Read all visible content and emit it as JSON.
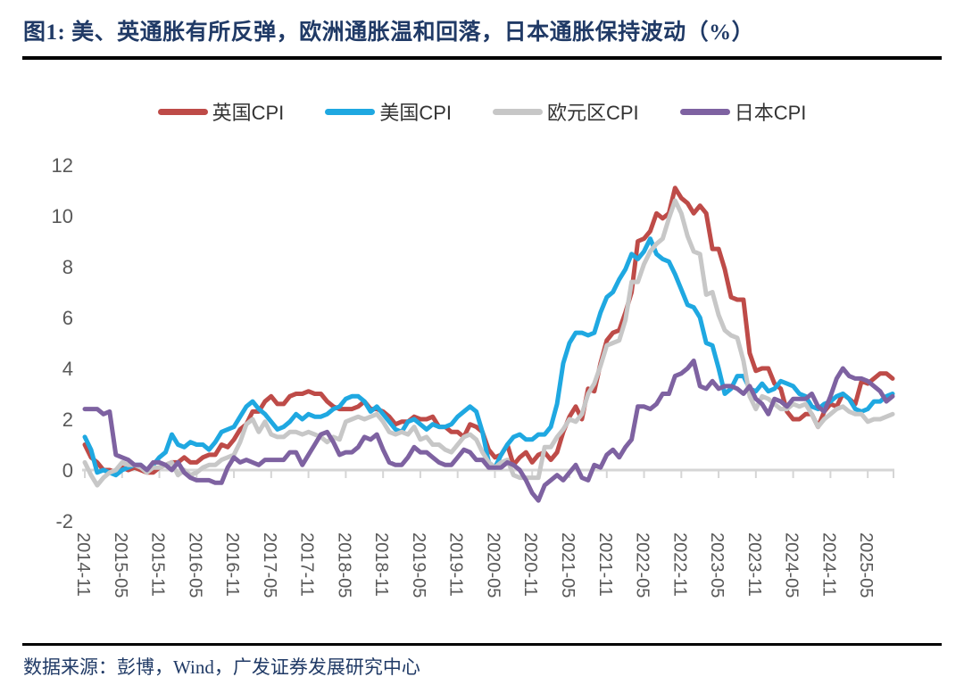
{
  "title": "图1:  美、英通胀有所反弹，欧洲通胀温和回落，日本通胀保持波动（%）",
  "footer": {
    "source_label": "数据来源：彭博，Wind，广发证券发展研究中心"
  },
  "colors": {
    "title_navy": "#203A66",
    "axis_line": "#D5D5D5",
    "axis_text": "#595959",
    "divider_black": "#000000"
  },
  "chart_data": {
    "type": "line",
    "title": "",
    "xlabel": "",
    "ylabel": "",
    "unit": "%",
    "x_frequency": "monthly",
    "x_start": "2014-11",
    "x_end": "2025-09",
    "ylim": [
      -2,
      12
    ],
    "y_ticks": [
      12,
      10,
      8,
      6,
      4,
      2,
      0,
      -2
    ],
    "grid": false,
    "legend_position": "top-center",
    "x_tick_labels": [
      "2014-11",
      "2015-05",
      "2015-11",
      "2016-05",
      "2016-11",
      "2017-05",
      "2017-11",
      "2018-05",
      "2018-11",
      "2019-05",
      "2019-11",
      "2020-05",
      "2020-11",
      "2021-05",
      "2021-11",
      "2022-05",
      "2022-11",
      "2023-05",
      "2023-11",
      "2024-05",
      "2024-11",
      "2025-05"
    ],
    "series": [
      {
        "name": "英国CPI",
        "slug": "uk-cpi",
        "color": "#BE4B48",
        "values": [
          1.0,
          0.5,
          0.3,
          0.0,
          0.0,
          -0.1,
          0.1,
          0.0,
          0.1,
          0.0,
          -0.1,
          -0.1,
          0.1,
          0.2,
          0.3,
          0.3,
          0.5,
          0.3,
          0.3,
          0.5,
          0.6,
          0.6,
          1.0,
          0.9,
          1.2,
          1.6,
          1.8,
          2.3,
          2.3,
          2.7,
          2.9,
          2.6,
          2.6,
          2.9,
          3.0,
          3.0,
          3.1,
          3.0,
          3.0,
          2.7,
          2.5,
          2.4,
          2.4,
          2.4,
          2.5,
          2.7,
          2.4,
          2.4,
          2.3,
          2.1,
          1.8,
          1.9,
          1.9,
          2.1,
          2.0,
          2.0,
          2.1,
          1.7,
          1.7,
          1.5,
          1.5,
          1.3,
          1.8,
          1.7,
          1.5,
          0.8,
          0.5,
          0.6,
          1.0,
          0.2,
          0.5,
          0.7,
          0.3,
          0.6,
          0.7,
          0.4,
          0.7,
          1.5,
          2.1,
          2.5,
          2.0,
          3.2,
          3.1,
          4.2,
          5.1,
          5.4,
          5.5,
          6.2,
          7.0,
          9.0,
          9.1,
          9.4,
          10.1,
          9.9,
          10.1,
          11.1,
          10.7,
          10.5,
          10.1,
          10.4,
          10.1,
          8.7,
          8.7,
          7.9,
          6.8,
          6.7,
          6.7,
          4.6,
          3.9,
          4.0,
          4.0,
          3.4,
          3.2,
          2.3,
          2.0,
          2.0,
          2.2,
          2.2,
          1.7,
          2.3,
          2.6,
          2.5,
          3.0,
          2.8,
          2.6,
          3.5,
          3.4,
          3.6,
          3.8,
          3.8,
          3.6
        ]
      },
      {
        "name": "美国CPI",
        "slug": "us-cpi",
        "color": "#1FA8E1",
        "values": [
          1.3,
          0.8,
          -0.1,
          0.0,
          -0.1,
          -0.2,
          0.0,
          0.1,
          0.2,
          0.2,
          0.0,
          0.2,
          0.5,
          0.7,
          1.4,
          1.0,
          0.9,
          1.1,
          1.0,
          1.0,
          0.8,
          1.1,
          1.5,
          1.6,
          1.7,
          2.1,
          2.5,
          2.7,
          2.4,
          2.2,
          1.9,
          1.6,
          1.7,
          1.9,
          2.2,
          2.0,
          2.2,
          2.1,
          2.1,
          2.2,
          2.4,
          2.5,
          2.8,
          2.9,
          2.9,
          2.7,
          2.3,
          2.5,
          2.2,
          1.9,
          1.6,
          1.5,
          1.9,
          2.0,
          1.8,
          1.6,
          1.8,
          1.7,
          1.7,
          1.8,
          2.1,
          2.3,
          2.5,
          2.3,
          1.5,
          0.3,
          0.1,
          0.6,
          1.0,
          1.3,
          1.4,
          1.2,
          1.2,
          1.4,
          1.4,
          1.7,
          2.6,
          4.2,
          5.0,
          5.4,
          5.4,
          5.3,
          5.4,
          6.2,
          6.8,
          7.0,
          7.5,
          7.9,
          8.5,
          8.3,
          8.6,
          9.1,
          8.5,
          8.3,
          8.2,
          7.7,
          7.1,
          6.5,
          6.4,
          6.0,
          5.0,
          4.9,
          4.0,
          3.0,
          3.2,
          3.7,
          3.7,
          3.2,
          3.1,
          3.4,
          3.1,
          3.2,
          3.5,
          3.4,
          3.3,
          3.0,
          2.9,
          2.5,
          2.4,
          2.6,
          2.7,
          2.9,
          3.0,
          2.8,
          2.4,
          2.3,
          2.4,
          2.7,
          2.7,
          2.9,
          3.0
        ]
      },
      {
        "name": "欧元区CPI",
        "slug": "eurozone-cpi",
        "color": "#C7C7C7",
        "values": [
          0.3,
          -0.2,
          -0.6,
          -0.3,
          -0.1,
          0.0,
          0.3,
          0.2,
          0.2,
          0.1,
          -0.1,
          0.1,
          0.1,
          0.2,
          0.3,
          -0.2,
          0.0,
          -0.2,
          -0.1,
          0.1,
          0.2,
          0.2,
          0.4,
          0.5,
          0.6,
          1.1,
          1.8,
          2.0,
          1.5,
          1.9,
          1.4,
          1.3,
          1.3,
          1.5,
          1.5,
          1.4,
          1.5,
          1.4,
          1.3,
          1.1,
          1.3,
          1.2,
          1.9,
          2.0,
          2.1,
          2.0,
          2.1,
          2.2,
          1.9,
          1.5,
          1.4,
          1.5,
          1.4,
          1.7,
          1.2,
          1.3,
          1.0,
          1.0,
          0.8,
          0.7,
          1.0,
          1.3,
          1.4,
          1.2,
          0.7,
          0.3,
          0.1,
          0.3,
          0.4,
          -0.2,
          -0.3,
          -0.3,
          -0.3,
          -0.3,
          0.9,
          0.9,
          1.3,
          1.6,
          2.0,
          1.9,
          2.2,
          3.0,
          3.4,
          4.1,
          4.9,
          5.0,
          5.1,
          5.9,
          7.4,
          7.4,
          8.1,
          8.6,
          8.9,
          9.1,
          9.9,
          10.6,
          10.1,
          9.2,
          8.6,
          8.5,
          6.9,
          7.0,
          6.1,
          5.5,
          5.3,
          5.2,
          4.3,
          2.9,
          2.4,
          2.9,
          2.8,
          2.6,
          2.4,
          2.4,
          2.6,
          2.5,
          2.6,
          2.2,
          1.7,
          2.0,
          2.2,
          2.4,
          2.5,
          2.3,
          2.2,
          2.2,
          1.9,
          2.0,
          2.0,
          2.1,
          2.2
        ]
      },
      {
        "name": "日本CPI",
        "slug": "japan-cpi",
        "color": "#7E62A1",
        "values": [
          2.4,
          2.4,
          2.4,
          2.2,
          2.3,
          0.6,
          0.5,
          0.4,
          0.2,
          0.2,
          0.0,
          0.3,
          0.3,
          0.2,
          0.0,
          0.3,
          -0.1,
          -0.3,
          -0.4,
          -0.4,
          -0.4,
          -0.5,
          -0.5,
          0.1,
          0.5,
          0.3,
          0.4,
          0.3,
          0.2,
          0.4,
          0.4,
          0.4,
          0.4,
          0.7,
          0.7,
          0.2,
          0.6,
          1.0,
          1.4,
          1.5,
          1.1,
          0.6,
          0.7,
          0.7,
          0.9,
          1.3,
          1.2,
          1.4,
          0.8,
          0.3,
          0.2,
          0.2,
          0.5,
          0.9,
          0.7,
          0.7,
          0.5,
          0.3,
          0.2,
          0.2,
          0.5,
          0.8,
          0.7,
          0.4,
          0.4,
          0.1,
          0.1,
          0.1,
          0.3,
          0.2,
          0.0,
          -0.4,
          -0.9,
          -1.2,
          -0.6,
          -0.4,
          -0.2,
          -0.4,
          -0.1,
          0.2,
          -0.3,
          -0.4,
          0.2,
          0.1,
          0.6,
          0.8,
          0.5,
          0.9,
          1.2,
          2.5,
          2.5,
          2.4,
          2.6,
          3.0,
          3.0,
          3.7,
          3.8,
          4.0,
          4.3,
          3.3,
          3.2,
          3.5,
          3.2,
          3.3,
          3.3,
          3.2,
          3.0,
          3.3,
          2.8,
          2.6,
          2.2,
          2.8,
          2.7,
          2.5,
          2.8,
          2.8,
          2.8,
          3.0,
          2.5,
          2.3,
          2.9,
          3.6,
          4.0,
          3.7,
          3.6,
          3.6,
          3.5,
          3.3,
          3.1,
          2.7,
          2.9
        ]
      }
    ]
  }
}
